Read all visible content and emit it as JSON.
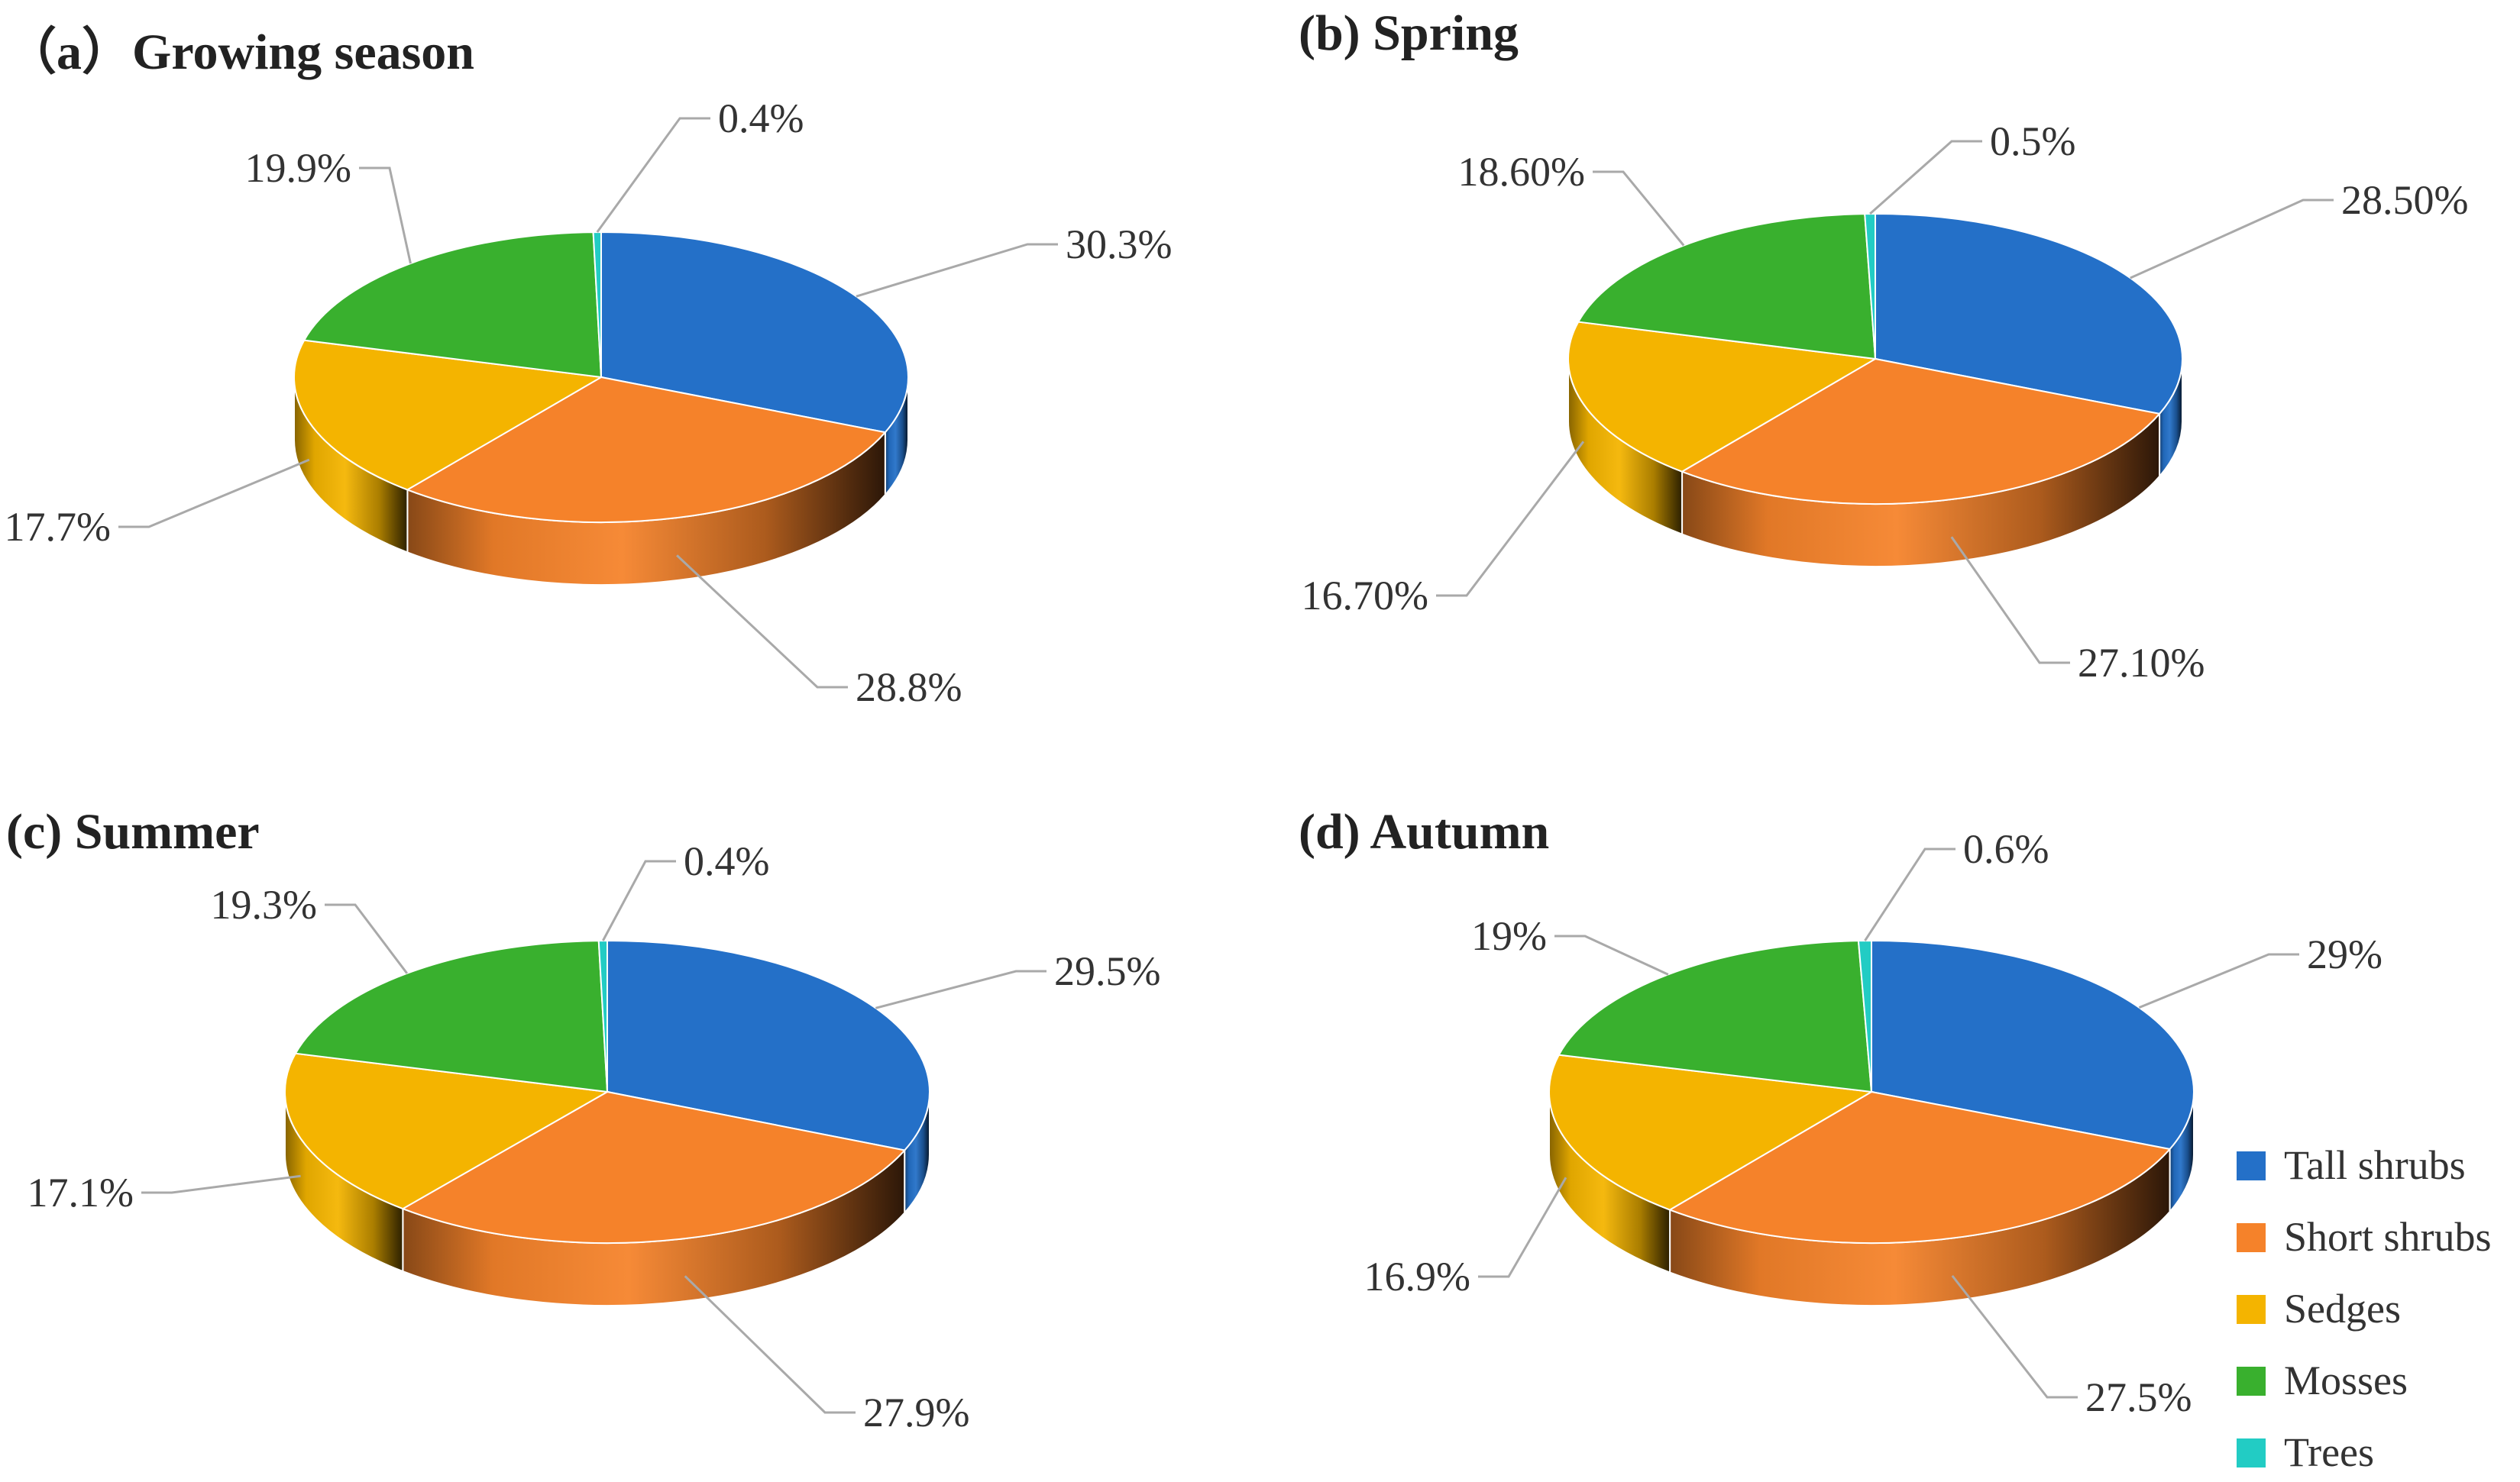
{
  "legend": [
    {
      "label": "Tall shrubs",
      "color": "#2470c8"
    },
    {
      "label": "Short shrubs",
      "color": "#f5822a"
    },
    {
      "label": "Sedges",
      "color": "#f4b400"
    },
    {
      "label": "Mosses",
      "color": "#39b02e"
    },
    {
      "label": "Trees",
      "color": "#22ccc4"
    }
  ],
  "chart_data": [
    {
      "type": "pie",
      "title": "（a）Growing season",
      "categories": [
        "Tall shrubs",
        "Short shrubs",
        "Sedges",
        "Mosses",
        "Trees"
      ],
      "values": [
        30.3,
        28.8,
        17.7,
        19.9,
        0.4
      ],
      "labels": [
        "30.3%",
        "28.8%",
        "17.7%",
        "19.9%",
        "0.4%"
      ]
    },
    {
      "type": "pie",
      "title": "(b) Spring",
      "categories": [
        "Tall shrubs",
        "Short shrubs",
        "Sedges",
        "Mosses",
        "Trees"
      ],
      "values": [
        28.5,
        27.1,
        16.7,
        18.6,
        0.5
      ],
      "labels": [
        "28.50%",
        "27.10%",
        "16.70%",
        "18.60%",
        "0.5%"
      ]
    },
    {
      "type": "pie",
      "title": "(c) Summer",
      "categories": [
        "Tall shrubs",
        "Short shrubs",
        "Sedges",
        "Mosses",
        "Trees"
      ],
      "values": [
        29.5,
        27.9,
        17.1,
        19.3,
        0.4
      ],
      "labels": [
        "29.5%",
        "27.9%",
        "17.1%",
        "19.3%",
        "0.4%"
      ]
    },
    {
      "type": "pie",
      "title": "(d) Autumn",
      "categories": [
        "Tall shrubs",
        "Short shrubs",
        "Sedges",
        "Mosses",
        "Trees"
      ],
      "values": [
        29,
        27.5,
        16.9,
        19,
        0.6
      ],
      "labels": [
        "29%",
        "27.5%",
        "16.9%",
        "19%",
        "0.6%"
      ]
    }
  ]
}
